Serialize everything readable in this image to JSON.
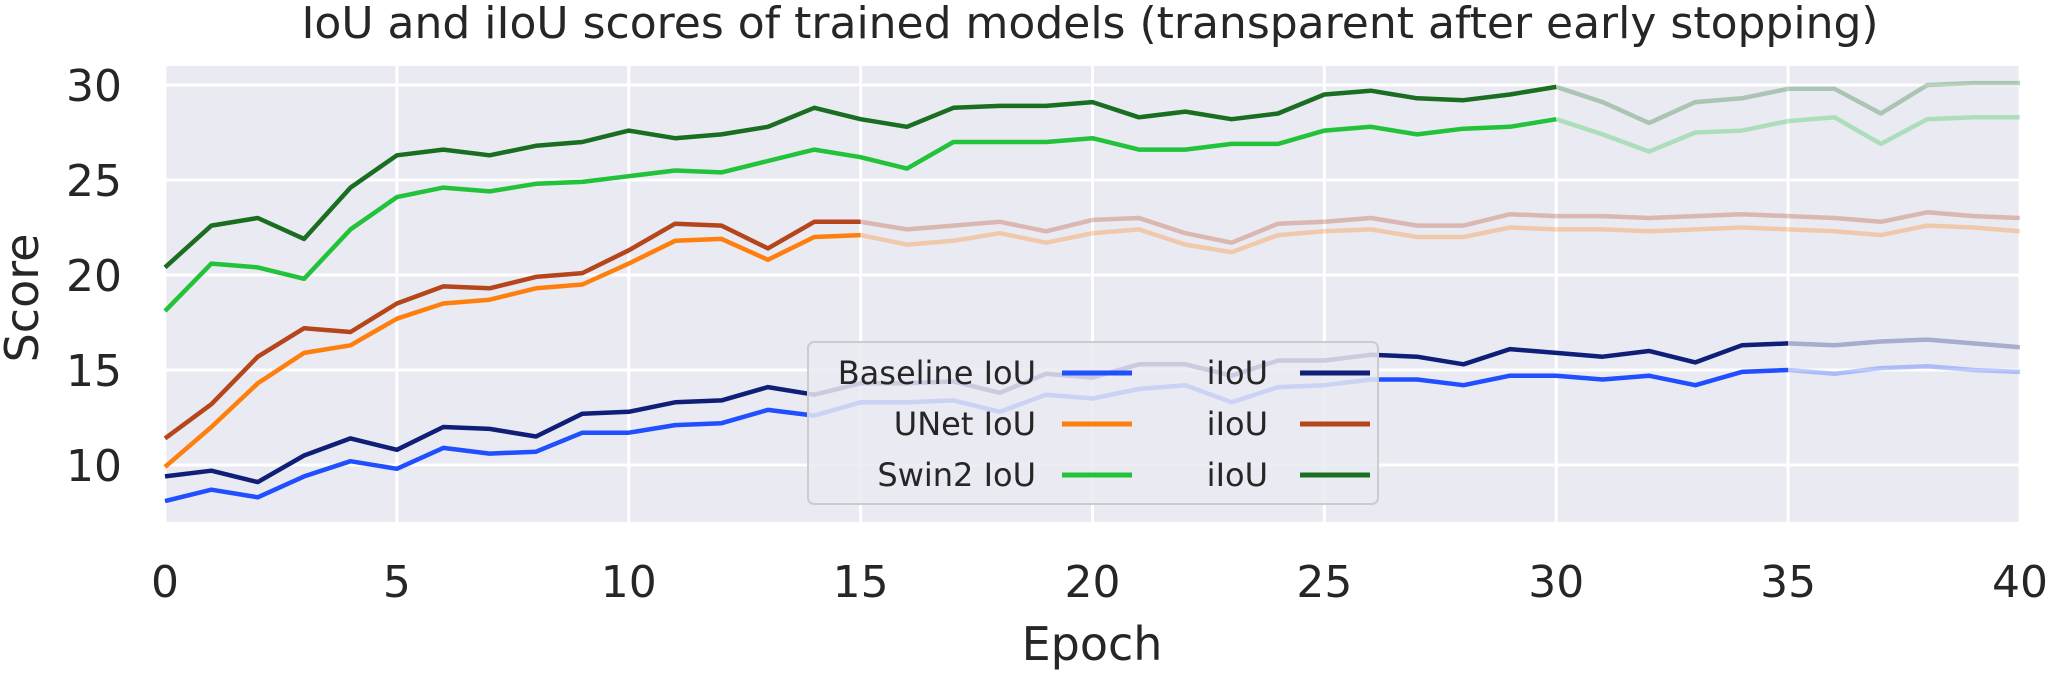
{
  "chart_data": {
    "type": "line",
    "title": "IoU and iIoU scores of trained models (transparent after early stopping)",
    "xlabel": "Epoch",
    "ylabel": "Score",
    "xlim": [
      0,
      40
    ],
    "ylim": [
      7,
      31
    ],
    "xticks": [
      "0",
      "5",
      "10",
      "15",
      "20",
      "25",
      "30",
      "35",
      "40"
    ],
    "yticks": [
      "10",
      "15",
      "20",
      "25",
      "30"
    ],
    "grid": true,
    "legend_position": "center",
    "series": [
      {
        "model": "Baseline",
        "metric": "IoU",
        "color": "#1f4fff",
        "early_stop_epoch": 35,
        "x": [
          0,
          1,
          2,
          3,
          4,
          5,
          6,
          7,
          8,
          9,
          10,
          11,
          12,
          13,
          14,
          15,
          16,
          17,
          18,
          19,
          20,
          21,
          22,
          23,
          24,
          25,
          26,
          27,
          28,
          29,
          30,
          31,
          32,
          33,
          34,
          35,
          36,
          37,
          38,
          39,
          40
        ],
        "values": [
          8.1,
          8.7,
          8.3,
          9.4,
          10.2,
          9.8,
          10.9,
          10.6,
          10.7,
          11.7,
          11.7,
          12.1,
          12.2,
          12.9,
          12.6,
          13.3,
          13.3,
          13.4,
          12.8,
          13.7,
          13.5,
          14.0,
          14.2,
          13.3,
          14.1,
          14.2,
          14.5,
          14.5,
          14.2,
          14.7,
          14.7,
          14.5,
          14.7,
          14.2,
          14.9,
          15.0,
          14.8,
          15.1,
          15.2,
          15.0,
          14.9
        ]
      },
      {
        "model": "Baseline",
        "metric": "iIoU",
        "color": "#0f1f78",
        "early_stop_epoch": 35,
        "x": [
          0,
          1,
          2,
          3,
          4,
          5,
          6,
          7,
          8,
          9,
          10,
          11,
          12,
          13,
          14,
          15,
          16,
          17,
          18,
          19,
          20,
          21,
          22,
          23,
          24,
          25,
          26,
          27,
          28,
          29,
          30,
          31,
          32,
          33,
          34,
          35,
          36,
          37,
          38,
          39,
          40
        ],
        "values": [
          9.4,
          9.7,
          9.1,
          10.5,
          11.4,
          10.8,
          12.0,
          11.9,
          11.5,
          12.7,
          12.8,
          13.3,
          13.4,
          14.1,
          13.7,
          14.3,
          14.3,
          14.4,
          13.8,
          14.8,
          14.6,
          15.3,
          15.3,
          14.7,
          15.5,
          15.5,
          15.8,
          15.7,
          15.3,
          16.1,
          15.9,
          15.7,
          16.0,
          15.4,
          16.3,
          16.4,
          16.3,
          16.5,
          16.6,
          16.4,
          16.2
        ]
      },
      {
        "model": "UNet",
        "metric": "IoU",
        "color": "#ff7f0e",
        "early_stop_epoch": 15,
        "x": [
          0,
          1,
          2,
          3,
          4,
          5,
          6,
          7,
          8,
          9,
          10,
          11,
          12,
          13,
          14,
          15,
          16,
          17,
          18,
          19,
          20,
          21,
          22,
          23,
          24,
          25,
          26,
          27,
          28,
          29,
          30,
          31,
          32,
          33,
          34,
          35,
          36,
          37,
          38,
          39,
          40
        ],
        "values": [
          9.9,
          12.0,
          14.3,
          15.9,
          16.3,
          17.7,
          18.5,
          18.7,
          19.3,
          19.5,
          20.6,
          21.8,
          21.9,
          20.8,
          22.0,
          22.1,
          21.6,
          21.8,
          22.2,
          21.7,
          22.2,
          22.4,
          21.6,
          21.2,
          22.1,
          22.3,
          22.4,
          22.0,
          22.0,
          22.5,
          22.4,
          22.4,
          22.3,
          22.4,
          22.5,
          22.4,
          22.3,
          22.1,
          22.6,
          22.5,
          22.3
        ]
      },
      {
        "model": "UNet",
        "metric": "iIoU",
        "color": "#b5451b",
        "early_stop_epoch": 15,
        "x": [
          0,
          1,
          2,
          3,
          4,
          5,
          6,
          7,
          8,
          9,
          10,
          11,
          12,
          13,
          14,
          15,
          16,
          17,
          18,
          19,
          20,
          21,
          22,
          23,
          24,
          25,
          26,
          27,
          28,
          29,
          30,
          31,
          32,
          33,
          34,
          35,
          36,
          37,
          38,
          39,
          40
        ],
        "values": [
          11.4,
          13.2,
          15.7,
          17.2,
          17.0,
          18.5,
          19.4,
          19.3,
          19.9,
          20.1,
          21.3,
          22.7,
          22.6,
          21.4,
          22.8,
          22.8,
          22.4,
          22.6,
          22.8,
          22.3,
          22.9,
          23.0,
          22.2,
          21.7,
          22.7,
          22.8,
          23.0,
          22.6,
          22.6,
          23.2,
          23.1,
          23.1,
          23.0,
          23.1,
          23.2,
          23.1,
          23.0,
          22.8,
          23.3,
          23.1,
          23.0
        ]
      },
      {
        "model": "Swin2",
        "metric": "IoU",
        "color": "#22c23a",
        "early_stop_epoch": 30,
        "x": [
          0,
          1,
          2,
          3,
          4,
          5,
          6,
          7,
          8,
          9,
          10,
          11,
          12,
          13,
          14,
          15,
          16,
          17,
          18,
          19,
          20,
          21,
          22,
          23,
          24,
          25,
          26,
          27,
          28,
          29,
          30,
          31,
          32,
          33,
          34,
          35,
          36,
          37,
          38,
          39,
          40
        ],
        "values": [
          18.1,
          20.6,
          20.4,
          19.8,
          22.4,
          24.1,
          24.6,
          24.4,
          24.8,
          24.9,
          25.2,
          25.5,
          25.4,
          26.0,
          26.6,
          26.2,
          25.6,
          27.0,
          27.0,
          27.0,
          27.2,
          26.6,
          26.6,
          26.9,
          26.9,
          27.6,
          27.8,
          27.4,
          27.7,
          27.8,
          28.2,
          27.4,
          26.5,
          27.5,
          27.6,
          28.1,
          28.3,
          26.9,
          28.2,
          28.3,
          28.3
        ]
      },
      {
        "model": "Swin2",
        "metric": "iIoU",
        "color": "#1a6e21",
        "early_stop_epoch": 30,
        "x": [
          0,
          1,
          2,
          3,
          4,
          5,
          6,
          7,
          8,
          9,
          10,
          11,
          12,
          13,
          14,
          15,
          16,
          17,
          18,
          19,
          20,
          21,
          22,
          23,
          24,
          25,
          26,
          27,
          28,
          29,
          30,
          31,
          32,
          33,
          34,
          35,
          36,
          37,
          38,
          39,
          40
        ],
        "values": [
          20.4,
          22.6,
          23.0,
          21.9,
          24.6,
          26.3,
          26.6,
          26.3,
          26.8,
          27.0,
          27.6,
          27.2,
          27.4,
          27.8,
          28.8,
          28.2,
          27.8,
          28.8,
          28.9,
          28.9,
          29.1,
          28.3,
          28.6,
          28.2,
          28.5,
          29.5,
          29.7,
          29.3,
          29.2,
          29.5,
          29.9,
          29.1,
          28.0,
          29.1,
          29.3,
          29.8,
          29.8,
          28.5,
          30.0,
          30.1,
          30.1
        ]
      }
    ],
    "legend": [
      {
        "label": "Baseline IoU",
        "series_index": 0
      },
      {
        "label": "iIoU",
        "series_index": 1
      },
      {
        "label": "UNet IoU",
        "series_index": 2
      },
      {
        "label": "iIoU",
        "series_index": 3
      },
      {
        "label": "Swin2 IoU",
        "series_index": 4
      },
      {
        "label": "iIoU",
        "series_index": 5
      }
    ],
    "colors": {
      "plot_background": "#eaeaf2",
      "grid": "#ffffff",
      "text": "#262626"
    }
  }
}
